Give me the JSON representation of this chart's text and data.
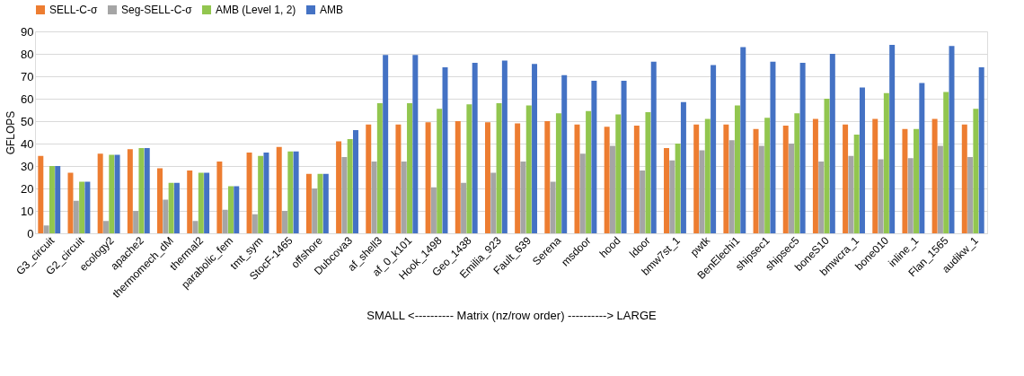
{
  "chart_data": {
    "type": "bar",
    "xlabel": "SMALL <---------- Matrix (nz/row order) ----------> LARGE",
    "ylabel": "GFLOPS",
    "categories": [
      "G3_circuit",
      "G2_circuit",
      "ecology2",
      "apache2",
      "thermomech_dM",
      "thermal2",
      "parabolic_fem",
      "tmt_sym",
      "StocF-1465",
      "offshore",
      "Dubcova3",
      "af_shell3",
      "af_0_k101",
      "Hook_1498",
      "Geo_1438",
      "Emilia_923",
      "Fault_639",
      "Serena",
      "msdoor",
      "hood",
      "ldoor",
      "bmw7st_1",
      "pwtk",
      "BenElechi1",
      "shipsec1",
      "shipsec5",
      "boneS10",
      "bmwcra_1",
      "bone010",
      "inline_1",
      "Flan_1565",
      "audikw_1"
    ],
    "series": [
      {
        "name": "SELL-C-σ",
        "color": "#ed7d31",
        "values": [
          34.5,
          27,
          35.5,
          37.5,
          29,
          28,
          32,
          36,
          38.5,
          26.5,
          41,
          48.5,
          48.5,
          49.5,
          50,
          49.5,
          49,
          50,
          48.5,
          47.5,
          48,
          38,
          48.5,
          48.5,
          46.5,
          48,
          51,
          48.5,
          51,
          46.5,
          51,
          48.5
        ]
      },
      {
        "name": "Seg-SELL-C-σ",
        "color": "#a5a5a5",
        "values": [
          3.5,
          14.5,
          5.5,
          10,
          15,
          5.5,
          10.5,
          8.5,
          10,
          20,
          34,
          32,
          32,
          20.5,
          22.5,
          27,
          32,
          23,
          35.5,
          39,
          28,
          32.5,
          37,
          41.5,
          39,
          40,
          32,
          34.5,
          33,
          33.5,
          39,
          34
        ]
      },
      {
        "name": "AMB (Level 1, 2)",
        "color": "#92c64f",
        "values": [
          30,
          23,
          35,
          38,
          22.5,
          27,
          21,
          34.5,
          36.5,
          26.5,
          42,
          58,
          58,
          55.5,
          57.5,
          58,
          57,
          53.5,
          54.5,
          53,
          54,
          40,
          51,
          57,
          51.5,
          53.5,
          60,
          44,
          62.5,
          46.5,
          63,
          55.5
        ]
      },
      {
        "name": "AMB",
        "color": "#4472c4",
        "values": [
          30,
          23,
          35,
          38,
          22.5,
          27,
          21,
          36,
          36.5,
          26.5,
          46,
          79.5,
          79.5,
          74,
          76,
          77,
          75.5,
          70.5,
          68,
          68,
          76.5,
          58.5,
          75,
          83,
          76.5,
          76,
          80,
          65,
          84,
          67,
          83.5,
          74
        ]
      }
    ],
    "ylim": [
      0,
      90
    ],
    "yticks": [
      0,
      10,
      20,
      30,
      40,
      50,
      60,
      70,
      80,
      90
    ],
    "grid": "y",
    "legend": "top"
  }
}
